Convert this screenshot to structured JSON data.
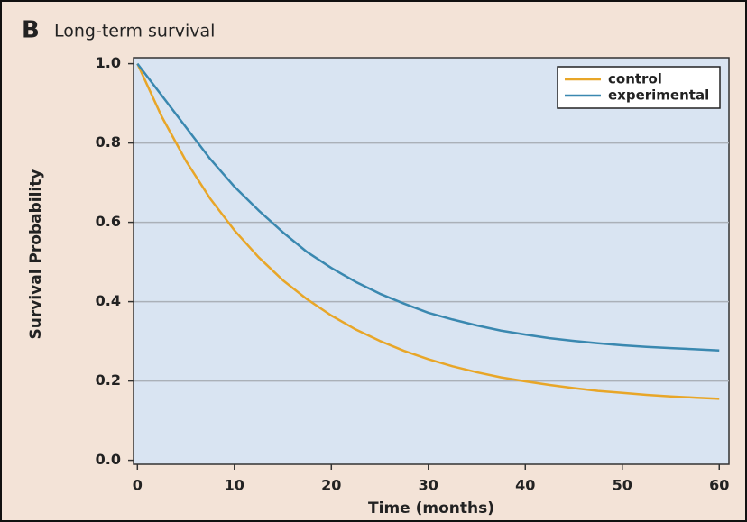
{
  "chart_data": {
    "type": "line",
    "panel_label": "B",
    "title": "Long-term survival",
    "x_label": "Time (months)",
    "y_label": "Survival Probability",
    "x": [
      0,
      2.5,
      5,
      7.5,
      10,
      12.5,
      15,
      17.5,
      20,
      22.5,
      25,
      27.5,
      30,
      32.5,
      35,
      37.5,
      40,
      42.5,
      45,
      47.5,
      50,
      52.5,
      55,
      57.5,
      60
    ],
    "series": [
      {
        "name": "control",
        "color": "#e8a628",
        "values": [
          1.0,
          0.867,
          0.755,
          0.66,
          0.58,
          0.512,
          0.454,
          0.406,
          0.365,
          0.33,
          0.301,
          0.276,
          0.255,
          0.237,
          0.222,
          0.209,
          0.199,
          0.19,
          0.182,
          0.175,
          0.17,
          0.165,
          0.161,
          0.158,
          0.155
        ]
      },
      {
        "name": "experimental",
        "color": "#3a88b0",
        "values": [
          1.0,
          0.92,
          0.84,
          0.76,
          0.69,
          0.63,
          0.575,
          0.525,
          0.485,
          0.45,
          0.42,
          0.395,
          0.372,
          0.355,
          0.34,
          0.327,
          0.317,
          0.308,
          0.301,
          0.295,
          0.29,
          0.286,
          0.283,
          0.28,
          0.277
        ]
      }
    ],
    "xlim": [
      -0.4,
      61
    ],
    "xticks": [
      0,
      10,
      20,
      30,
      40,
      50,
      60
    ],
    "ylim": [
      -0.01,
      1.015
    ],
    "yticks": [
      {
        "value": 0,
        "label": "0.0"
      },
      {
        "value": 0.2,
        "label": "0.2"
      },
      {
        "value": 0.4,
        "label": "0.4"
      },
      {
        "value": 0.6,
        "label": "0.6"
      },
      {
        "value": 0.8,
        "label": "0.8"
      },
      {
        "value": 1,
        "label": "1.0"
      }
    ],
    "grid": true,
    "legend": "upper right"
  }
}
